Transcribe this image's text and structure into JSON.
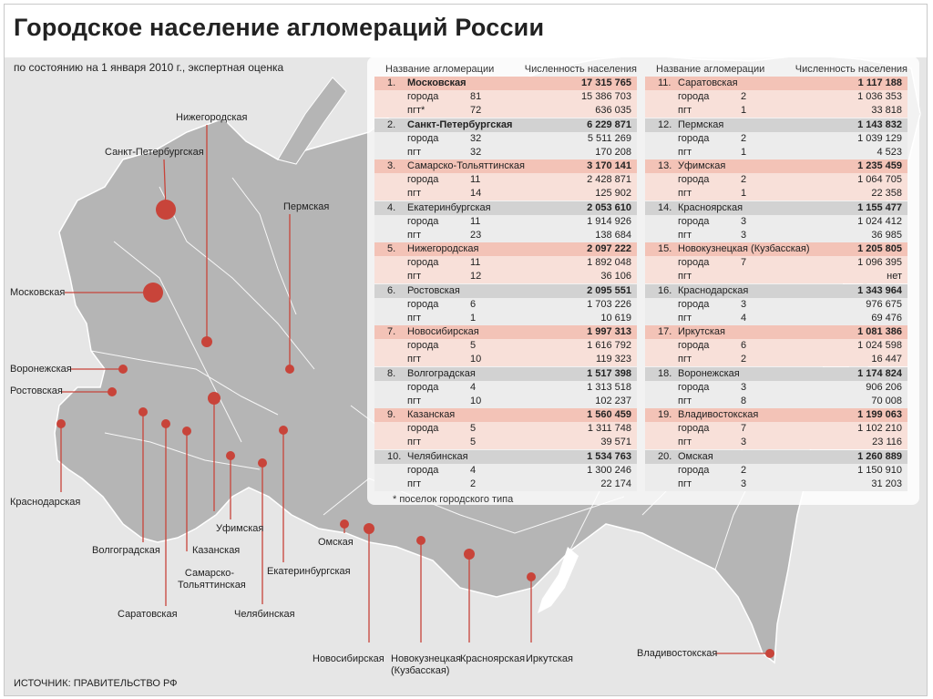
{
  "title": "Городское население агломераций России",
  "subtitle": "по состоянию на 1 января 2010 г., экспертная оценка",
  "source": "ИСТОЧНИК: ПРАВИТЕЛЬСТВО РФ",
  "colors": {
    "accent": "#c8443a",
    "highlight": "#f3c3b7",
    "gray": "#d2d2d2"
  },
  "table": {
    "col_name": "Название агломерации",
    "col_pop": "Численность населения",
    "footnote": "* поселок городского типа",
    "left": [
      {
        "num": "1.",
        "name": "Московская",
        "total": "17 315 765",
        "bold": true,
        "shade": "salmon",
        "rows": [
          {
            "kind": "города",
            "count": "81",
            "value": "15 386 703"
          },
          {
            "kind": "пгт*",
            "count": "72",
            "value": "636 035"
          }
        ]
      },
      {
        "num": "2.",
        "name": "Санкт-Петербургская",
        "total": "6 229 871",
        "bold": true,
        "shade": "gray",
        "rows": [
          {
            "kind": "города",
            "count": "32",
            "value": "5 511 269"
          },
          {
            "kind": "пгт",
            "count": "32",
            "value": "170 208"
          }
        ]
      },
      {
        "num": "3.",
        "name": "Самарско-Тольяттинская",
        "total": "3 170 141",
        "bold": false,
        "shade": "salmon",
        "rows": [
          {
            "kind": "города",
            "count": "11",
            "value": "2 428 871"
          },
          {
            "kind": "пгт",
            "count": "14",
            "value": "125 902"
          }
        ]
      },
      {
        "num": "4.",
        "name": "Екатеринбургская",
        "total": "2 053 610",
        "bold": false,
        "shade": "gray",
        "rows": [
          {
            "kind": "города",
            "count": "11",
            "value": "1 914 926"
          },
          {
            "kind": "пгт",
            "count": "23",
            "value": "138 684"
          }
        ]
      },
      {
        "num": "5.",
        "name": "Нижегородская",
        "total": "2 097 222",
        "bold": false,
        "shade": "salmon",
        "rows": [
          {
            "kind": "города",
            "count": "11",
            "value": "1 892 048"
          },
          {
            "kind": "пгт",
            "count": "12",
            "value": "36 106"
          }
        ]
      },
      {
        "num": "6.",
        "name": "Ростовская",
        "total": "2 095 551",
        "bold": false,
        "shade": "gray",
        "rows": [
          {
            "kind": "города",
            "count": "6",
            "value": "1 703 226"
          },
          {
            "kind": "пгт",
            "count": "1",
            "value": "10 619"
          }
        ]
      },
      {
        "num": "7.",
        "name": "Новосибирская",
        "total": "1 997 313",
        "bold": false,
        "shade": "salmon",
        "rows": [
          {
            "kind": "города",
            "count": "5",
            "value": "1 616 792"
          },
          {
            "kind": "пгт",
            "count": "10",
            "value": "119 323"
          }
        ]
      },
      {
        "num": "8.",
        "name": "Волгоградская",
        "total": "1 517 398",
        "bold": false,
        "shade": "gray",
        "rows": [
          {
            "kind": "города",
            "count": "4",
            "value": "1 313 518"
          },
          {
            "kind": "пгт",
            "count": "10",
            "value": "102 237"
          }
        ]
      },
      {
        "num": "9.",
        "name": "Казанская",
        "total": "1 560 459",
        "bold": false,
        "shade": "salmon",
        "rows": [
          {
            "kind": "города",
            "count": "5",
            "value": "1 311 748"
          },
          {
            "kind": "пгт",
            "count": "5",
            "value": "39 571"
          }
        ]
      },
      {
        "num": "10.",
        "name": "Челябинская",
        "total": "1 534 763",
        "bold": false,
        "shade": "gray",
        "rows": [
          {
            "kind": "города",
            "count": "4",
            "value": "1 300 246"
          },
          {
            "kind": "пгт",
            "count": "2",
            "value": "22 174"
          }
        ]
      }
    ],
    "right": [
      {
        "num": "11.",
        "name": "Саратовская",
        "total": "1 117 188",
        "bold": false,
        "shade": "salmon",
        "rows": [
          {
            "kind": "города",
            "count": "2",
            "value": "1 036 353"
          },
          {
            "kind": "пгт",
            "count": "1",
            "value": "33 818"
          }
        ]
      },
      {
        "num": "12.",
        "name": "Пермская",
        "total": "1 143 832",
        "bold": false,
        "shade": "gray",
        "rows": [
          {
            "kind": "города",
            "count": "2",
            "value": "1 039 129"
          },
          {
            "kind": "пгт",
            "count": "1",
            "value": "4 523"
          }
        ]
      },
      {
        "num": "13.",
        "name": "Уфимская",
        "total": "1 235 459",
        "bold": false,
        "shade": "salmon",
        "rows": [
          {
            "kind": "города",
            "count": "2",
            "value": "1 064 705"
          },
          {
            "kind": "пгт",
            "count": "1",
            "value": "22 358"
          }
        ]
      },
      {
        "num": "14.",
        "name": "Красноярская",
        "total": "1 155 477",
        "bold": false,
        "shade": "gray",
        "rows": [
          {
            "kind": "города",
            "count": "3",
            "value": "1 024 412"
          },
          {
            "kind": "пгт",
            "count": "3",
            "value": "36 985"
          }
        ]
      },
      {
        "num": "15.",
        "name": "Новокузнецкая (Кузбасская)",
        "total": "1 205 805",
        "bold": false,
        "shade": "salmon",
        "rows": [
          {
            "kind": "города",
            "count": "7",
            "value": "1 096 395"
          },
          {
            "kind": "пгт",
            "count": "",
            "value": "нет"
          }
        ]
      },
      {
        "num": "16.",
        "name": "Краснодарская",
        "total": "1 343 964",
        "bold": false,
        "shade": "gray",
        "rows": [
          {
            "kind": "города",
            "count": "3",
            "value": "976 675"
          },
          {
            "kind": "пгт",
            "count": "4",
            "value": "69 476"
          }
        ]
      },
      {
        "num": "17.",
        "name": "Иркутская",
        "total": "1 081 386",
        "bold": false,
        "shade": "salmon",
        "rows": [
          {
            "kind": "города",
            "count": "6",
            "value": "1 024 598"
          },
          {
            "kind": "пгт",
            "count": "2",
            "value": "16 447"
          }
        ]
      },
      {
        "num": "18.",
        "name": "Воронежская",
        "total": "1 174 824",
        "bold": false,
        "shade": "gray",
        "rows": [
          {
            "kind": "города",
            "count": "3",
            "value": "906 206"
          },
          {
            "kind": "пгт",
            "count": "8",
            "value": "70 008"
          }
        ]
      },
      {
        "num": "19.",
        "name": "Владивостокская",
        "total": "1 199 063",
        "bold": false,
        "shade": "salmon",
        "rows": [
          {
            "kind": "города",
            "count": "7",
            "value": "1 102 210"
          },
          {
            "kind": "пгт",
            "count": "3",
            "value": "23 116"
          }
        ]
      },
      {
        "num": "20.",
        "name": "Омская",
        "total": "1 260 889",
        "bold": false,
        "shade": "gray",
        "rows": [
          {
            "kind": "города",
            "count": "2",
            "value": "1 150 910"
          },
          {
            "kind": "пгт",
            "count": "3",
            "value": "31 203"
          }
        ]
      }
    ]
  },
  "map_labels": {
    "nizhny": "Нижегородская",
    "spb": "Санкт-Петербургская",
    "perm": "Пермская",
    "moscow": "Московская",
    "voronezh": "Воронежская",
    "rostov": "Ростовская",
    "krasnodar": "Краснодарская",
    "volgograd": "Волгоградская",
    "saratov": "Саратовская",
    "samara": "Самарско-Тольяттинская",
    "kazan": "Казанская",
    "ufa": "Уфимская",
    "chelyabinsk": "Челябинская",
    "ekaterinburg": "Екатеринбургская",
    "omsk": "Омская",
    "novosibirsk": "Новосибирская",
    "novokuznetsk": "Новокузнецкая (Кузбасская)",
    "krasnoyarsk": "Красноярская",
    "irkutsk": "Иркутская",
    "vladivostok": "Владивостокская"
  }
}
